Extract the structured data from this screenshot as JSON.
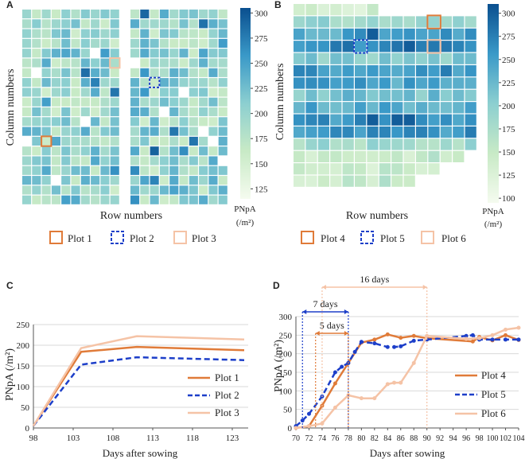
{
  "colors": {
    "plot1": "#E07B39",
    "plot2": "#1D3FC9",
    "plot3": "#F5C3A6",
    "plot4": "#E07B39",
    "plot5": "#1D3FC9",
    "plot6": "#F5C3A6",
    "scale_low": "#F1FAEE",
    "scale_high": "#08519C"
  },
  "panelA": {
    "letter": "A",
    "xlabel": "Row numbers",
    "ylabel": "Column numbers",
    "colorbar": {
      "title": "PNpA",
      "unit": "(/m²)",
      "ticks": [
        125,
        150,
        175,
        200,
        225,
        250,
        275,
        300
      ],
      "min": 115,
      "max": 305
    },
    "grid": {
      "rows": 20,
      "cols_left": 10,
      "cols_right": 10,
      "light_cells": [
        [
          13,
          0
        ],
        [
          8,
          15
        ],
        [
          10,
          13
        ],
        [
          12,
          17
        ],
        [
          4,
          7
        ],
        [
          15,
          19
        ],
        [
          17,
          3
        ],
        [
          5,
          10
        ],
        [
          11,
          6
        ],
        [
          13,
          18
        ],
        [
          6,
          1
        ]
      ]
    },
    "legend": [
      "Plot 1",
      "Plot 2",
      "Plot 3"
    ],
    "markers": {
      "plot1": [
        13,
        2
      ],
      "plot2": [
        7,
        12
      ],
      "plot3": [
        5,
        9
      ]
    }
  },
  "panelB": {
    "letter": "B",
    "xlabel": "Row numbers",
    "ylabel": "Column numbers",
    "colorbar": {
      "title": "PNpA",
      "unit": "(/m²)",
      "ticks": [
        100,
        125,
        150,
        175,
        200,
        225,
        250,
        275,
        300
      ],
      "min": 95,
      "max": 310
    },
    "grid": {
      "rows": 15,
      "cols": 15,
      "row_lengths": [
        7,
        15,
        15,
        15,
        15,
        15,
        15,
        15,
        15,
        15,
        15,
        15,
        14,
        12,
        10
      ],
      "row_means": [
        140,
        185,
        245,
        265,
        205,
        260,
        245,
        215,
        240,
        258,
        255,
        180,
        150,
        145,
        150
      ],
      "dark_cells": [
        [
          2,
          6
        ],
        [
          9,
          6
        ],
        [
          9,
          8
        ],
        [
          9,
          9
        ],
        [
          3,
          9
        ]
      ]
    },
    "legend": [
      "Plot 4",
      "Plot 5",
      "Plot 6"
    ],
    "markers": {
      "plot4": [
        1,
        11
      ],
      "plot5": [
        3,
        5
      ],
      "plot6": [
        3,
        11
      ]
    }
  },
  "chart_data": [
    {
      "panel": "C",
      "type": "line",
      "xlabel": "Days after sowing",
      "ylabel": "PNpA (/m²)",
      "xlim": [
        98,
        125
      ],
      "ylim": [
        0,
        250
      ],
      "xticks": [
        98,
        103,
        108,
        113,
        118,
        123
      ],
      "yticks": [
        0,
        50,
        100,
        150,
        200,
        250
      ],
      "series": [
        {
          "name": "Plot 1",
          "x": [
            98,
            104,
            111,
            124.5
          ],
          "values": [
            5,
            184,
            196,
            188
          ]
        },
        {
          "name": "Plot 2",
          "x": [
            98,
            104,
            111,
            124.5
          ],
          "values": [
            5,
            153,
            171,
            164
          ]
        },
        {
          "name": "Plot 3",
          "x": [
            98,
            104,
            111,
            124.5
          ],
          "values": [
            5,
            193,
            222,
            214
          ]
        }
      ]
    },
    {
      "panel": "D",
      "type": "line",
      "xlabel": "Days after sowing",
      "ylabel": "PNpA (/m²)",
      "xlim": [
        70,
        104
      ],
      "ylim": [
        0,
        300
      ],
      "xticks": [
        70,
        72,
        74,
        76,
        78,
        80,
        82,
        84,
        86,
        88,
        90,
        92,
        94,
        96,
        98,
        100,
        102,
        104
      ],
      "yticks": [
        0,
        50,
        100,
        150,
        200,
        250,
        300
      ],
      "series": [
        {
          "name": "Plot 4",
          "x": [
            70,
            72,
            74,
            76,
            78,
            80,
            82,
            84,
            86,
            88,
            90,
            97,
            98,
            100,
            102,
            104
          ],
          "values": [
            0,
            5,
            60,
            120,
            175,
            230,
            238,
            252,
            243,
            248,
            242,
            233,
            245,
            236,
            250,
            237
          ]
        },
        {
          "name": "Plot 5",
          "x": [
            70,
            71,
            72,
            74,
            76,
            77,
            78,
            79,
            80,
            82,
            84,
            85,
            86,
            88,
            90,
            96,
            97,
            98,
            100,
            102,
            104
          ],
          "values": [
            5,
            20,
            38,
            85,
            150,
            165,
            175,
            205,
            232,
            228,
            218,
            218,
            220,
            235,
            238,
            248,
            250,
            238,
            238,
            238,
            238
          ]
        },
        {
          "name": "Plot 6",
          "x": [
            70,
            72,
            74,
            76,
            78,
            80,
            82,
            84,
            85,
            86,
            88,
            90,
            96,
            98,
            100,
            102,
            104
          ],
          "values": [
            0,
            5,
            12,
            55,
            88,
            80,
            80,
            118,
            122,
            122,
            175,
            248,
            240,
            242,
            250,
            265,
            270
          ]
        }
      ],
      "annotations": [
        {
          "label": "16 days",
          "from": 74,
          "to": 90
        },
        {
          "label": "7 days",
          "from": 71,
          "to": 78
        },
        {
          "label": "5 days",
          "from": 73,
          "to": 78
        }
      ]
    }
  ],
  "panelC": {
    "letter": "C"
  },
  "panelD": {
    "letter": "D"
  }
}
